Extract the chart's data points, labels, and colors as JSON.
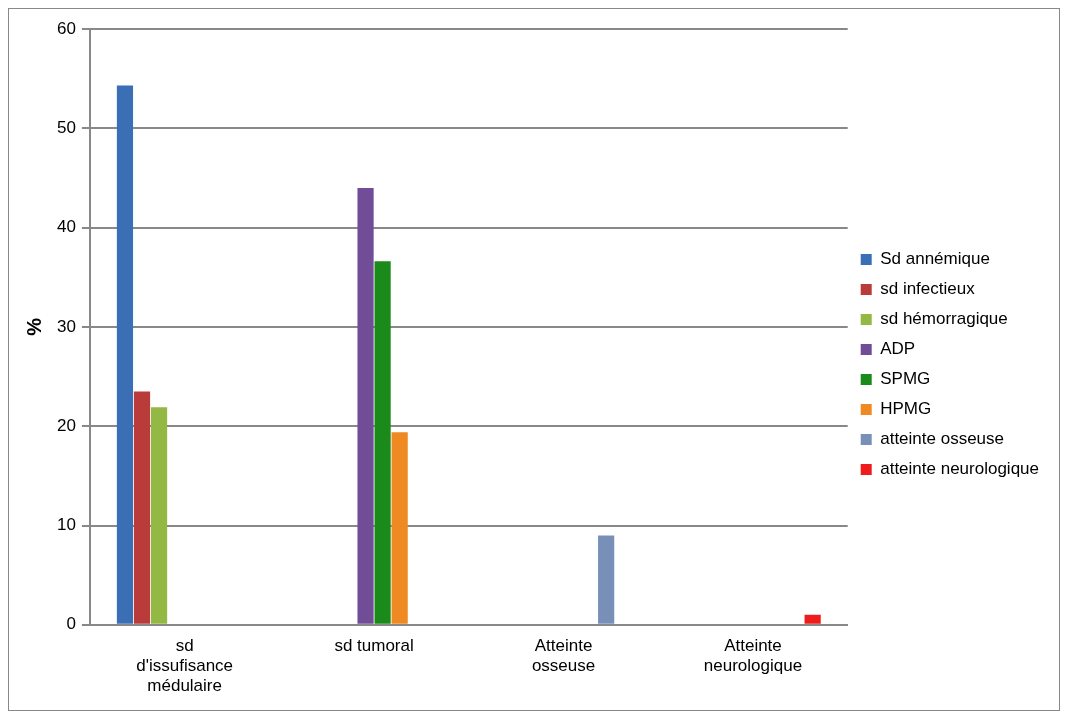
{
  "chart_data": {
    "type": "bar",
    "ylabel": "%",
    "categories": [
      "sd d'issufisance médulaire",
      "sd tumoral",
      "Atteinte osseuse",
      "Atteinte neurologique"
    ],
    "series": [
      {
        "name": "Sd annémique",
        "color": "#3a6fb5",
        "values": [
          54.3,
          null,
          null,
          null
        ]
      },
      {
        "name": "sd infectieux",
        "color": "#b93c3a",
        "values": [
          23.5,
          null,
          null,
          null
        ]
      },
      {
        "name": "sd hémorragique",
        "color": "#94b844",
        "values": [
          21.9,
          null,
          null,
          null
        ]
      },
      {
        "name": "ADP",
        "color": "#714d98",
        "values": [
          null,
          44,
          null,
          null
        ]
      },
      {
        "name": "SPMG",
        "color": "#1a8a1a",
        "values": [
          null,
          36.6,
          null,
          null
        ]
      },
      {
        "name": "HPMG",
        "color": "#ef8a22",
        "values": [
          null,
          19.4,
          null,
          null
        ]
      },
      {
        "name": "atteinte osseuse",
        "color": "#7890b8",
        "values": [
          null,
          null,
          9,
          null
        ]
      },
      {
        "name": "atteinte neurologique",
        "color": "#ee1c1c",
        "values": [
          null,
          null,
          null,
          1
        ]
      }
    ],
    "ylim": [
      0,
      60
    ],
    "yticks": [
      0,
      10,
      20,
      30,
      40,
      50,
      60
    ],
    "grid": "y",
    "legend": "right"
  }
}
